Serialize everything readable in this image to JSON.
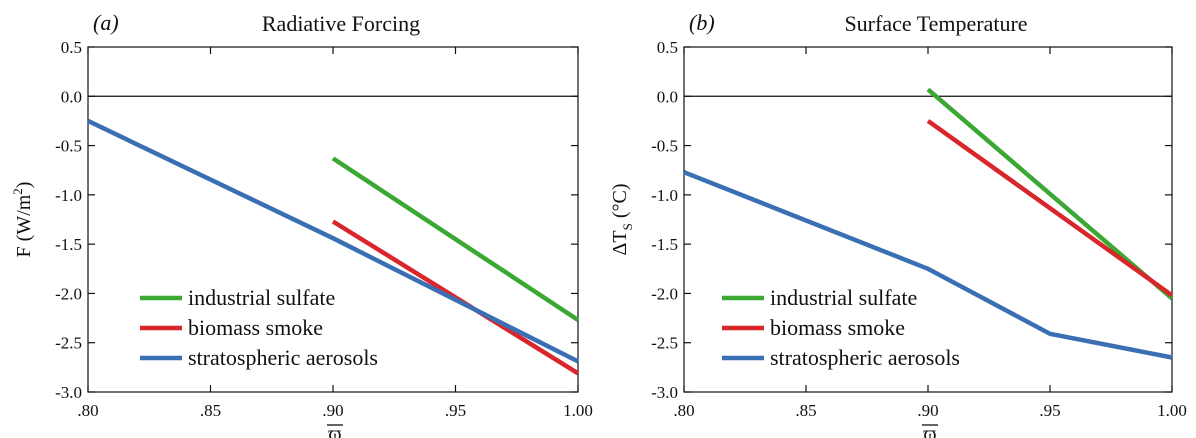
{
  "chart_data": [
    {
      "type": "line",
      "panel": "(a)",
      "title": "Radiative Forcing",
      "xlabel": "ϖ",
      "ylabel_main": "F (W/m",
      "ylabel_sup": "2",
      "ylabel_end": ")",
      "xlim": [
        0.8,
        1.0
      ],
      "ylim": [
        -3.0,
        0.5
      ],
      "xticks": [
        0.8,
        0.85,
        0.9,
        0.95,
        1.0
      ],
      "xtick_labels": [
        ".80",
        ".85",
        ".90",
        ".95",
        "1.00"
      ],
      "yticks": [
        0.5,
        0.0,
        -0.5,
        -1.0,
        -1.5,
        -2.0,
        -2.5,
        -3.0
      ],
      "ytick_labels": [
        "0.5",
        "0.0",
        "-0.5",
        "-1.0",
        "-1.5",
        "-2.0",
        "-2.5",
        "-3.0"
      ],
      "zero_line": true,
      "series": [
        {
          "name": "industrial sulfate",
          "color": "#3aa832",
          "x": [
            0.9,
            1.0
          ],
          "y": [
            -0.63,
            -2.27
          ]
        },
        {
          "name": "biomass smoke",
          "color": "#d9262a",
          "x": [
            0.9,
            1.0
          ],
          "y": [
            -1.27,
            -2.81
          ]
        },
        {
          "name": "stratospheric aerosols",
          "color": "#3a6fb4",
          "x": [
            0.8,
            0.9,
            1.0
          ],
          "y": [
            -0.25,
            -1.44,
            -2.69
          ]
        }
      ]
    },
    {
      "type": "line",
      "panel": "(b)",
      "title": "Surface Temperature",
      "xlabel": "ϖ",
      "ylabel_main": "ΔT",
      "ylabel_sub": "S",
      "ylabel_end": " (°C)",
      "xlim": [
        0.8,
        1.0
      ],
      "ylim": [
        -3.0,
        0.5
      ],
      "xticks": [
        0.8,
        0.85,
        0.9,
        0.95,
        1.0
      ],
      "xtick_labels": [
        ".80",
        ".85",
        ".90",
        ".95",
        "1.00"
      ],
      "yticks": [
        0.5,
        0.0,
        -0.5,
        -1.0,
        -1.5,
        -2.0,
        -2.5,
        -3.0
      ],
      "ytick_labels": [
        "0.5",
        "0.0",
        "-0.5",
        "-1.0",
        "-1.5",
        "-2.0",
        "-2.5",
        "-3.0"
      ],
      "zero_line": true,
      "series": [
        {
          "name": "industrial sulfate",
          "color": "#3aa832",
          "x": [
            0.9,
            1.0
          ],
          "y": [
            0.07,
            -2.05
          ]
        },
        {
          "name": "biomass smoke",
          "color": "#d9262a",
          "x": [
            0.9,
            1.0
          ],
          "y": [
            -0.25,
            -2.02
          ]
        },
        {
          "name": "stratospheric aerosols",
          "color": "#3a6fb4",
          "x": [
            0.8,
            0.9,
            0.95,
            1.0
          ],
          "y": [
            -0.77,
            -1.75,
            -2.41,
            -2.65
          ]
        }
      ]
    }
  ]
}
